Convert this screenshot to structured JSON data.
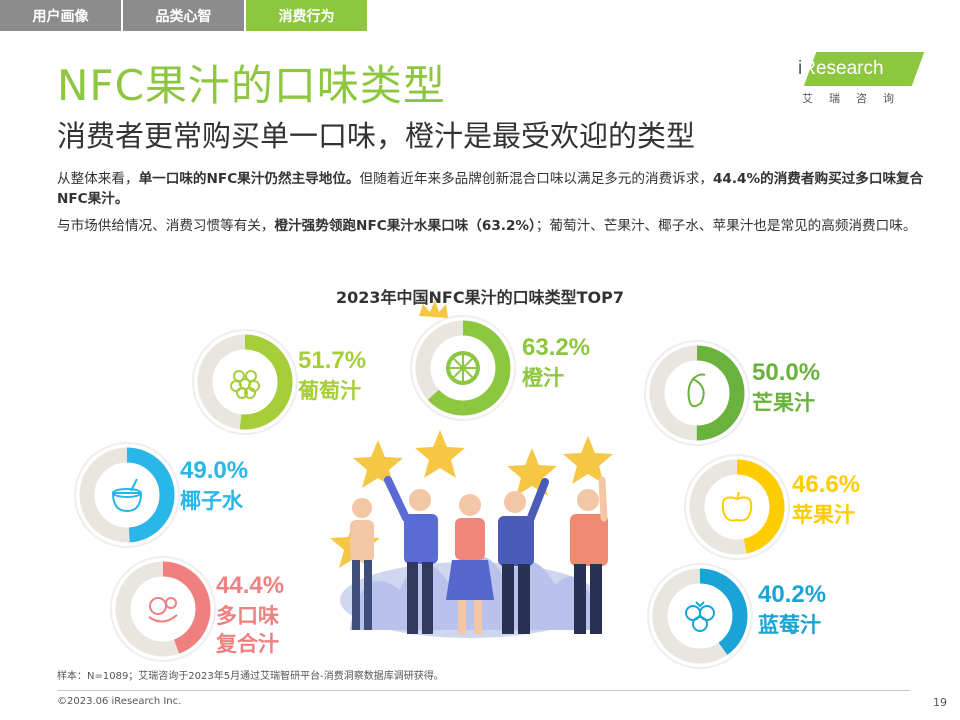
{
  "tabs": [
    {
      "label": "用户画像",
      "active": false
    },
    {
      "label": "品类心智",
      "active": false
    },
    {
      "label": "消费行为",
      "active": true
    }
  ],
  "title": "NFC果汁的口味类型",
  "subtitle": "消费者更常购买单一口味，橙汁是最受欢迎的类型",
  "logo": {
    "brand_i": "i",
    "brand_rest": "Research",
    "cn": "艾瑞咨询"
  },
  "paragraphs": {
    "p1": {
      "a": "从整体来看，",
      "b": "单一口味的NFC果汁仍然主导地位。",
      "c": "但随着近年来多品牌创新混合口味以满足多元的消费诉求，",
      "d": "44.4%的消费者购买过多口味复合NFC果汁。"
    },
    "p2": {
      "a": "与市场供给情况、消费习惯等有关，",
      "b": "橙汁强势领跑NFC果汁水果口味（63.2%）",
      "c": "；葡萄汁、芒果汁、椰子水、苹果汁也是常见的高频消费口味。"
    }
  },
  "chart_data": {
    "type": "donut",
    "title": "2023年中国NFC果汁的口味类型TOP7",
    "unit": "%",
    "items": [
      {
        "name": "葡萄汁",
        "label_lines": [
          "葡萄汁"
        ],
        "value": 51.7,
        "display": "51.7%",
        "color": "#a6ce39",
        "icon": "grape-icon"
      },
      {
        "name": "橙汁",
        "label_lines": [
          "橙汁"
        ],
        "value": 63.2,
        "display": "63.2%",
        "color": "#8dc63f",
        "icon": "orange-slice-icon",
        "crown": true
      },
      {
        "name": "芒果汁",
        "label_lines": [
          "芒果汁"
        ],
        "value": 50.0,
        "display": "50.0%",
        "color": "#6ab23e",
        "icon": "mango-icon"
      },
      {
        "name": "椰子水",
        "label_lines": [
          "椰子水"
        ],
        "value": 49.0,
        "display": "49.0%",
        "color": "#29b6e8",
        "icon": "coconut-icon"
      },
      {
        "name": "苹果汁",
        "label_lines": [
          "苹果汁"
        ],
        "value": 46.6,
        "display": "46.6%",
        "color": "#ffcc00",
        "icon": "apple-icon"
      },
      {
        "name": "多口味复合汁",
        "label_lines": [
          "多口味",
          "复合汁"
        ],
        "value": 44.4,
        "display": "44.4%",
        "color": "#f08080",
        "icon": "mixed-fruit-icon"
      },
      {
        "name": "蓝莓汁",
        "label_lines": [
          "蓝莓汁"
        ],
        "value": 40.2,
        "display": "40.2%",
        "color": "#1aa3d6",
        "icon": "blueberry-icon"
      }
    ]
  },
  "note": "样本：N=1089；艾瑞咨询于2023年5月通过艾瑞智研平台-消费洞察数据库调研获得。",
  "copyright": "©2023.06 iResearch Inc.",
  "page_number": "19"
}
